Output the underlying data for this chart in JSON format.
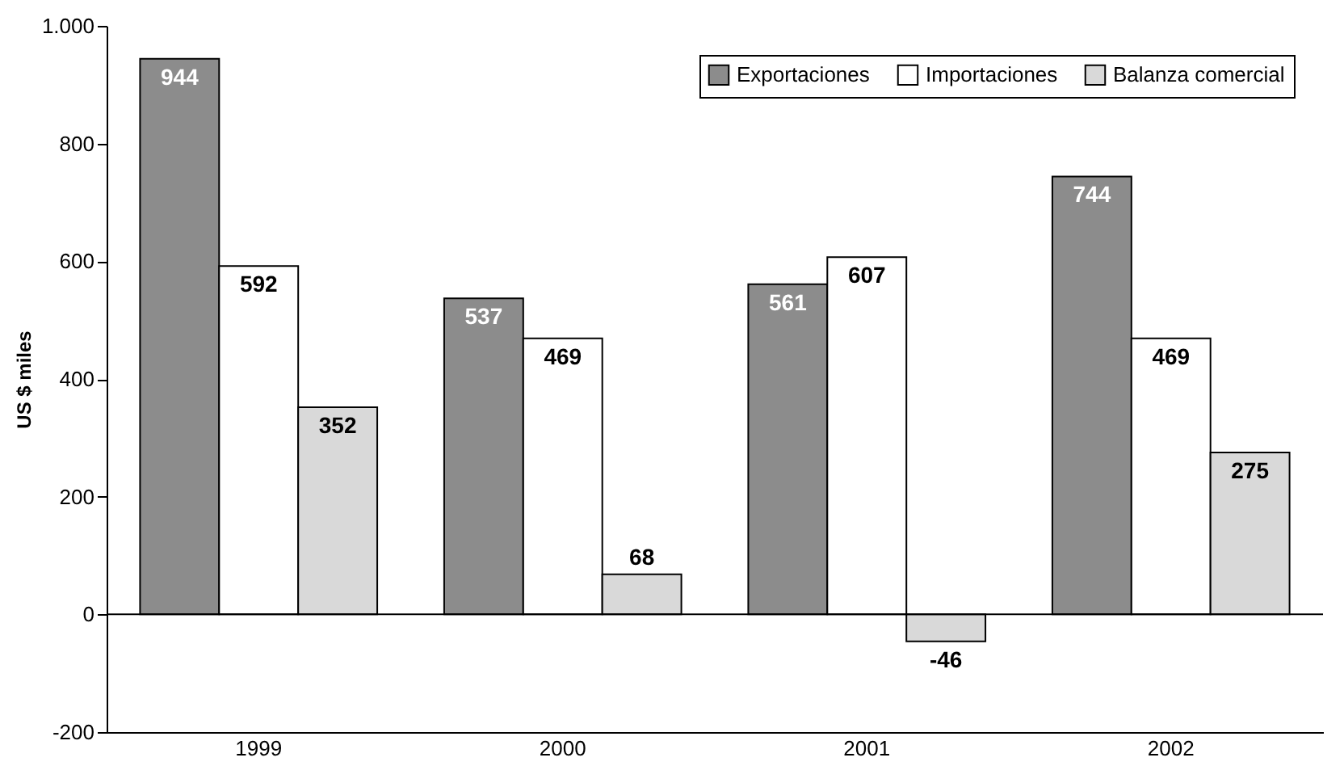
{
  "chart_data": {
    "type": "bar",
    "ylabel": "US $ miles",
    "categories": [
      "1999",
      "2000",
      "2001",
      "2002"
    ],
    "series": [
      {
        "name": "Exportaciones",
        "color": "#8c8c8c",
        "values": [
          944,
          537,
          561,
          744
        ]
      },
      {
        "name": "Importaciones",
        "color": "#ffffff",
        "values": [
          592,
          469,
          607,
          469
        ]
      },
      {
        "name": "Balanza comercial",
        "color": "#d9d9d9",
        "values": [
          352,
          68,
          -46,
          275
        ]
      }
    ],
    "ylim": [
      -200,
      1000
    ],
    "yticks": [
      -200,
      0,
      200,
      400,
      600,
      800,
      {
        "value": 1000,
        "label": "1.000"
      }
    ],
    "ref_lines": [
      {
        "axis": "y",
        "value": 0
      }
    ],
    "data_labels": true,
    "grid": false,
    "legend": "top right"
  }
}
